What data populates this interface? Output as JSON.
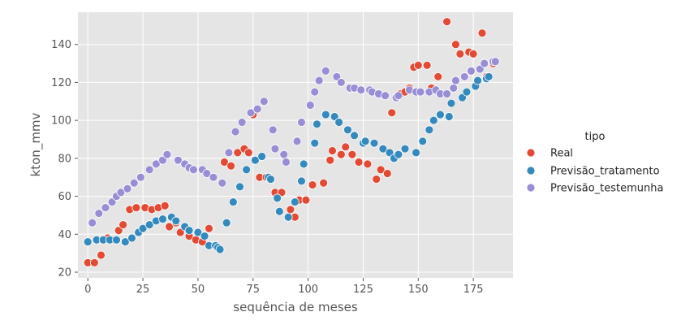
{
  "chart_data": {
    "type": "scatter",
    "xlabel": "sequência de meses",
    "ylabel": "kton_mmv",
    "xlim": [
      -4.5,
      193
    ],
    "ylim": [
      17,
      157
    ],
    "xticks": [
      0,
      25,
      50,
      75,
      100,
      125,
      150,
      175
    ],
    "yticks": [
      20,
      40,
      60,
      80,
      100,
      120,
      140
    ],
    "grid": true,
    "legend": {
      "title": "tipo",
      "placement": "right"
    },
    "series": [
      {
        "name": "Real",
        "color": "#e24a33",
        "points": [
          [
            0,
            25
          ],
          [
            3,
            25
          ],
          [
            6,
            29
          ],
          [
            9,
            38
          ],
          [
            11,
            37
          ],
          [
            14,
            42
          ],
          [
            16,
            45
          ],
          [
            19,
            53
          ],
          [
            22,
            54
          ],
          [
            26,
            54
          ],
          [
            29,
            53
          ],
          [
            32,
            54
          ],
          [
            35,
            55
          ],
          [
            37,
            44
          ],
          [
            40,
            46
          ],
          [
            42,
            41
          ],
          [
            46,
            39
          ],
          [
            49,
            37
          ],
          [
            52,
            36
          ],
          [
            55,
            43
          ],
          [
            58,
            34
          ],
          [
            62,
            78
          ],
          [
            65,
            76
          ],
          [
            68,
            83
          ],
          [
            71,
            85
          ],
          [
            73,
            83
          ],
          [
            75,
            103
          ],
          [
            78,
            70
          ],
          [
            81,
            70
          ],
          [
            85,
            62
          ],
          [
            88,
            62
          ],
          [
            92,
            53
          ],
          [
            94,
            49
          ],
          [
            96,
            58
          ],
          [
            99,
            58
          ],
          [
            102,
            66
          ],
          [
            107,
            67
          ],
          [
            110,
            79
          ],
          [
            111,
            84
          ],
          [
            115,
            82
          ],
          [
            117,
            86
          ],
          [
            120,
            82
          ],
          [
            123,
            78
          ],
          [
            127,
            77
          ],
          [
            131,
            69
          ],
          [
            133,
            74
          ],
          [
            136,
            72
          ],
          [
            138,
            104
          ],
          [
            142,
            114
          ],
          [
            144,
            115
          ],
          [
            146,
            117
          ],
          [
            148,
            128
          ],
          [
            150,
            129
          ],
          [
            154,
            129
          ],
          [
            156,
            117
          ],
          [
            159,
            123
          ],
          [
            163,
            152
          ],
          [
            167,
            140
          ],
          [
            169,
            135
          ],
          [
            173,
            136
          ],
          [
            175,
            135
          ],
          [
            179,
            146
          ],
          [
            181,
            123
          ],
          [
            184,
            130
          ]
        ]
      },
      {
        "name": "Previsão_tratamento",
        "color": "#348abd",
        "points": [
          [
            0,
            36
          ],
          [
            4,
            37
          ],
          [
            7,
            37
          ],
          [
            10,
            37
          ],
          [
            13,
            37
          ],
          [
            17,
            36
          ],
          [
            20,
            38
          ],
          [
            23,
            41
          ],
          [
            25,
            43
          ],
          [
            28,
            45
          ],
          [
            31,
            47
          ],
          [
            34,
            48
          ],
          [
            38,
            49
          ],
          [
            40,
            47
          ],
          [
            44,
            44
          ],
          [
            46,
            42
          ],
          [
            50,
            41
          ],
          [
            53,
            39
          ],
          [
            55,
            34
          ],
          [
            58,
            34
          ],
          [
            59,
            33
          ],
          [
            60,
            32
          ],
          [
            63,
            46
          ],
          [
            66,
            57
          ],
          [
            69,
            65
          ],
          [
            72,
            74
          ],
          [
            76,
            79
          ],
          [
            79,
            81
          ],
          [
            82,
            70
          ],
          [
            83,
            69
          ],
          [
            86,
            59
          ],
          [
            87,
            52
          ],
          [
            91,
            49
          ],
          [
            94,
            57
          ],
          [
            97,
            68
          ],
          [
            98,
            77
          ],
          [
            103,
            88
          ],
          [
            104,
            98
          ],
          [
            108,
            103
          ],
          [
            112,
            102
          ],
          [
            114,
            99
          ],
          [
            118,
            95
          ],
          [
            121,
            92
          ],
          [
            125,
            88
          ],
          [
            126,
            89
          ],
          [
            130,
            88
          ],
          [
            134,
            85
          ],
          [
            137,
            83
          ],
          [
            139,
            80
          ],
          [
            141,
            82
          ],
          [
            144,
            85
          ],
          [
            149,
            83
          ],
          [
            152,
            89
          ],
          [
            155,
            95
          ],
          [
            157,
            100
          ],
          [
            160,
            103
          ],
          [
            164,
            102
          ],
          [
            165,
            109
          ],
          [
            170,
            112
          ],
          [
            172,
            115
          ],
          [
            176,
            118
          ],
          [
            177,
            121
          ],
          [
            181,
            122
          ],
          [
            182,
            123
          ]
        ]
      },
      {
        "name": "Previsão_testemunha",
        "color": "#988ed5",
        "points": [
          [
            2,
            46
          ],
          [
            5,
            51
          ],
          [
            8,
            54
          ],
          [
            11,
            57
          ],
          [
            13,
            60
          ],
          [
            15,
            62
          ],
          [
            18,
            64
          ],
          [
            21,
            67
          ],
          [
            24,
            70
          ],
          [
            28,
            74
          ],
          [
            31,
            77
          ],
          [
            34,
            79
          ],
          [
            36,
            82
          ],
          [
            41,
            79
          ],
          [
            44,
            77
          ],
          [
            46,
            75
          ],
          [
            48,
            74
          ],
          [
            52,
            74
          ],
          [
            54,
            72
          ],
          [
            57,
            70
          ],
          [
            61,
            67
          ],
          [
            64,
            83
          ],
          [
            67,
            94
          ],
          [
            70,
            99
          ],
          [
            74,
            104
          ],
          [
            77,
            106
          ],
          [
            80,
            110
          ],
          [
            84,
            95
          ],
          [
            85,
            85
          ],
          [
            89,
            82
          ],
          [
            90,
            78
          ],
          [
            95,
            89
          ],
          [
            97,
            99
          ],
          [
            101,
            108
          ],
          [
            103,
            115
          ],
          [
            105,
            121
          ],
          [
            108,
            126
          ],
          [
            113,
            123
          ],
          [
            115,
            120
          ],
          [
            119,
            117
          ],
          [
            121,
            117
          ],
          [
            124,
            116
          ],
          [
            128,
            116
          ],
          [
            129,
            115
          ],
          [
            132,
            114
          ],
          [
            135,
            113
          ],
          [
            140,
            112
          ],
          [
            141,
            113
          ],
          [
            146,
            116
          ],
          [
            149,
            115
          ],
          [
            151,
            115
          ],
          [
            155,
            115
          ],
          [
            158,
            116
          ],
          [
            160,
            114
          ],
          [
            163,
            114
          ],
          [
            166,
            117
          ],
          [
            167,
            121
          ],
          [
            171,
            123
          ],
          [
            174,
            126
          ],
          [
            178,
            127
          ],
          [
            180,
            130
          ],
          [
            184,
            131
          ],
          [
            185,
            131
          ]
        ]
      }
    ]
  }
}
